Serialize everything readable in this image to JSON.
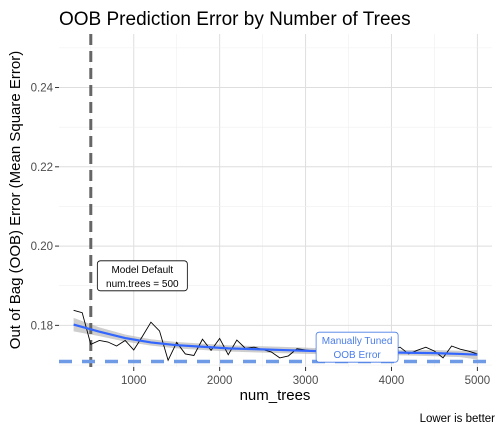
{
  "chart_data": {
    "type": "line",
    "title": "OOB Prediction Error by Number of Trees",
    "xlabel": "num_trees",
    "ylabel": "Out of Bag (OOB) Error (Mean Square Error)",
    "caption": "Lower is better",
    "xlim": [
      130,
      5170
    ],
    "ylim": [
      0.1695,
      0.2535
    ],
    "xticks": [
      1000,
      2000,
      3000,
      4000,
      5000
    ],
    "yticks": [
      0.18,
      0.2,
      0.22,
      0.24
    ],
    "ytick_labels": [
      "0.18",
      "0.20",
      "0.22",
      "0.24"
    ],
    "grid": true,
    "series": [
      {
        "style": "raw",
        "color": "#000000",
        "x": [
          300,
          400,
          500,
          600,
          700,
          800,
          900,
          1000,
          1100,
          1200,
          1300,
          1400,
          1500,
          1600,
          1700,
          1800,
          1900,
          2000,
          2100,
          2200,
          2300,
          2400,
          2500,
          2600,
          2700,
          2800,
          2900,
          3000,
          3100,
          3200,
          3300,
          3400,
          3500,
          3600,
          3700,
          3800,
          3900,
          4000,
          4100,
          4200,
          4300,
          4400,
          4500,
          4600,
          4700,
          4800,
          4900,
          5000
        ],
        "y": [
          0.1838,
          0.1832,
          0.1752,
          0.1762,
          0.1758,
          0.1748,
          0.1762,
          0.1738,
          0.1772,
          0.1808,
          0.1786,
          0.1712,
          0.1757,
          0.1728,
          0.1724,
          0.1765,
          0.1737,
          0.1767,
          0.1726,
          0.1763,
          0.1742,
          0.1745,
          0.1739,
          0.1733,
          0.1718,
          0.1723,
          0.1741,
          0.1738,
          0.1735,
          0.1741,
          0.1744,
          0.1741,
          0.1745,
          0.1722,
          0.1745,
          0.1741,
          0.1728,
          0.1741,
          0.1745,
          0.1728,
          0.1737,
          0.1745,
          0.1735,
          0.1718,
          0.1748,
          0.174,
          0.1735,
          0.1728
        ]
      },
      {
        "style": "smooth",
        "color": "#3366ff",
        "band_color": "#bebebe",
        "x": [
          300,
          600,
          900,
          1200,
          1500,
          1800,
          2100,
          2400,
          2700,
          3000,
          3300,
          3600,
          3900,
          4200,
          4500,
          4800,
          5000
        ],
        "y": [
          0.1802,
          0.1784,
          0.1768,
          0.1757,
          0.175,
          0.1746,
          0.1742,
          0.174,
          0.1738,
          0.1736,
          0.1734,
          0.1733,
          0.1732,
          0.1731,
          0.173,
          0.1728,
          0.1726
        ],
        "lower": [
          0.1785,
          0.1773,
          0.1759,
          0.1749,
          0.1742,
          0.1738,
          0.1734,
          0.1732,
          0.173,
          0.1728,
          0.1727,
          0.1726,
          0.1725,
          0.1724,
          0.1722,
          0.172,
          0.1714
        ],
        "upper": [
          0.1819,
          0.1795,
          0.1777,
          0.1765,
          0.1758,
          0.1754,
          0.175,
          0.1748,
          0.1746,
          0.1744,
          0.1741,
          0.174,
          0.1739,
          0.1738,
          0.1738,
          0.1736,
          0.1738
        ]
      }
    ],
    "reference_lines": [
      {
        "orientation": "vertical",
        "value": 500,
        "color": "#666666",
        "dash": true
      },
      {
        "orientation": "horizontal",
        "value": 0.1709,
        "color": "#6e9ae6",
        "dash": true
      }
    ],
    "annotations": [
      {
        "lines": [
          "Model Default",
          "num.trees = 500"
        ],
        "x": 1100,
        "y": 0.1925,
        "color": "#000000"
      },
      {
        "lines": [
          "Manually Tuned",
          "OOB Error"
        ],
        "x": 3600,
        "y": 0.1745,
        "color": "#4a7de8"
      }
    ]
  }
}
